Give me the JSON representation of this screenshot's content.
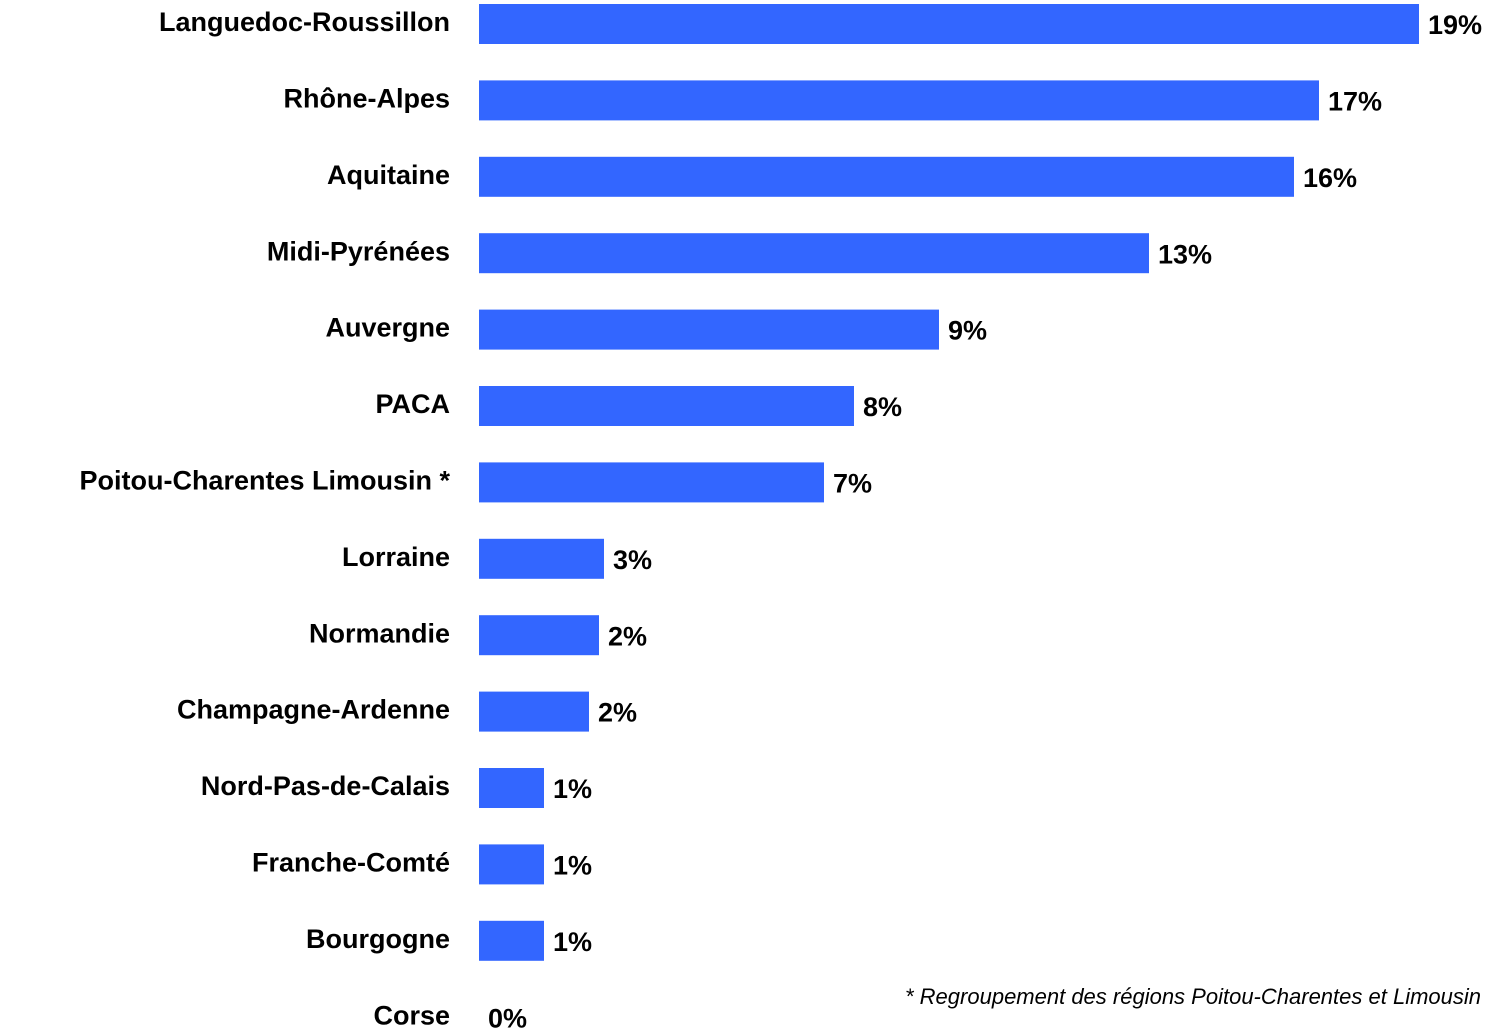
{
  "chart_data": {
    "type": "bar",
    "orientation": "horizontal",
    "categories": [
      "Languedoc-Roussillon",
      "Rhône-Alpes",
      "Aquitaine",
      "Midi-Pyrénées",
      "Auvergne",
      "PACA",
      "Poitou-Charentes Limousin *",
      "Lorraine",
      "Normandie",
      "Champagne-Ardenne",
      "Nord-Pas-de-Calais",
      "Franche-Comté",
      "Bourgogne",
      "Corse"
    ],
    "values": [
      18.8,
      16.8,
      16.3,
      13.4,
      9.2,
      7.5,
      6.9,
      2.5,
      2.4,
      2.2,
      1.3,
      1.3,
      1.3,
      0
    ],
    "value_labels": [
      "19%",
      "17%",
      "16%",
      "13%",
      "9%",
      "8%",
      "7%",
      "3%",
      "2%",
      "2%",
      "1%",
      "1%",
      "1%",
      "0%"
    ],
    "color": "#3366ff",
    "xlim": [
      0,
      20
    ],
    "annotation": "* Regroupement des régions Poitou-Charentes et Limousin"
  }
}
